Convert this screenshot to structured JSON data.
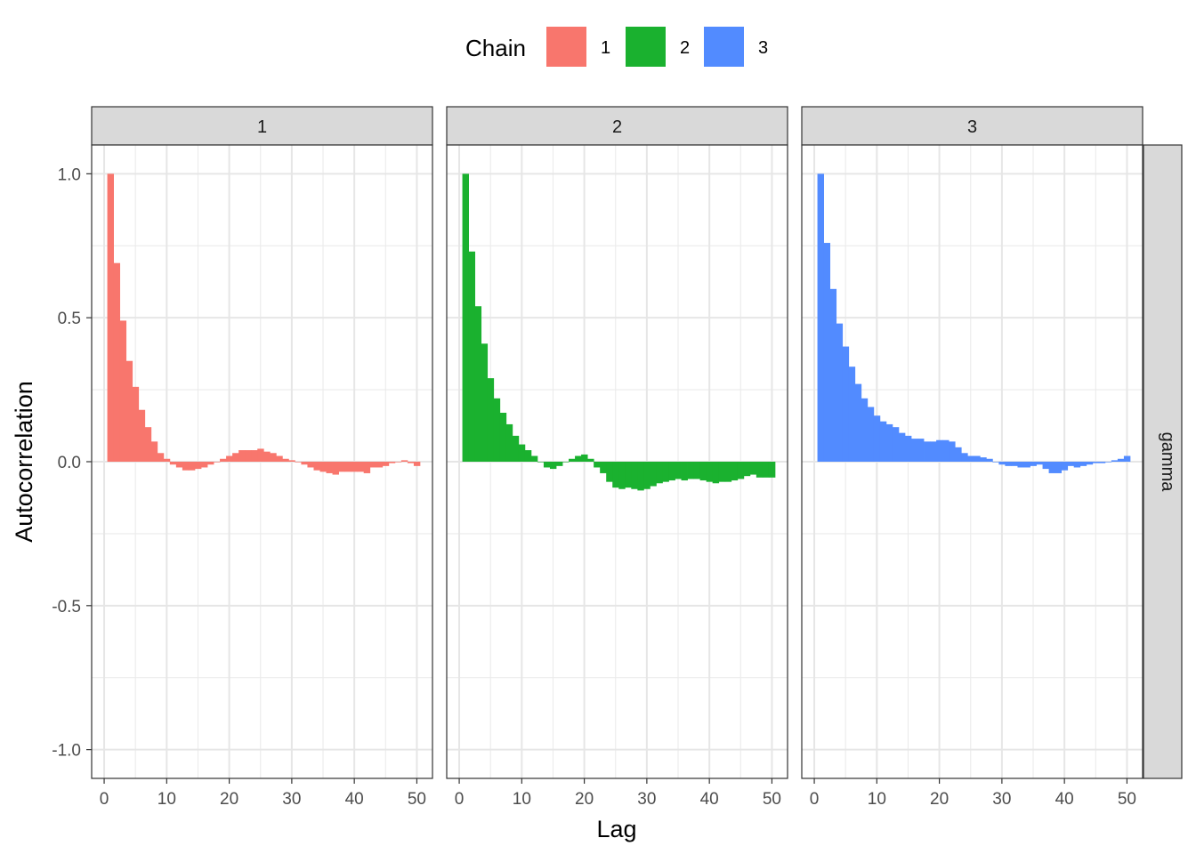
{
  "chart_data": {
    "type": "bar",
    "legend": {
      "title": "Chain",
      "position": "top",
      "entries": [
        {
          "label": "1",
          "color": "#F8766D"
        },
        {
          "label": "2",
          "color": "#1AB12F"
        },
        {
          "label": "3",
          "color": "#528BFF"
        }
      ]
    },
    "row_strip": "gamma",
    "xlabel": "Lag",
    "ylabel": "Autocorrelation",
    "xlim": [
      -2,
      52.5
    ],
    "ylim": [
      -1.1,
      1.1
    ],
    "xticks": [
      0,
      10,
      20,
      30,
      40,
      50
    ],
    "yticks": [
      -1.0,
      -0.5,
      0.0,
      0.5,
      1.0
    ],
    "ytick_labels": [
      "-1.0",
      "-0.5",
      "0.0",
      "0.5",
      "1.0"
    ],
    "grid": true,
    "lags": [
      1,
      2,
      3,
      4,
      5,
      6,
      7,
      8,
      9,
      10,
      11,
      12,
      13,
      14,
      15,
      16,
      17,
      18,
      19,
      20,
      21,
      22,
      23,
      24,
      25,
      26,
      27,
      28,
      29,
      30,
      31,
      32,
      33,
      34,
      35,
      36,
      37,
      38,
      39,
      40,
      41,
      42,
      43,
      44,
      45,
      46,
      47,
      48,
      49,
      50
    ],
    "series": [
      {
        "name": "1",
        "color": "#F8766D",
        "values": [
          1.0,
          0.69,
          0.49,
          0.35,
          0.26,
          0.18,
          0.12,
          0.07,
          0.03,
          0.01,
          -0.01,
          -0.02,
          -0.03,
          -0.03,
          -0.025,
          -0.02,
          -0.01,
          0.0,
          0.01,
          0.02,
          0.03,
          0.04,
          0.04,
          0.04,
          0.045,
          0.035,
          0.03,
          0.02,
          0.01,
          0.005,
          0.0,
          -0.01,
          -0.02,
          -0.03,
          -0.035,
          -0.04,
          -0.045,
          -0.035,
          -0.035,
          -0.035,
          -0.035,
          -0.04,
          -0.02,
          -0.02,
          -0.015,
          -0.005,
          0.0,
          0.005,
          -0.005,
          -0.015
        ]
      },
      {
        "name": "2",
        "color": "#1AB12F",
        "values": [
          1.0,
          0.73,
          0.54,
          0.41,
          0.29,
          0.22,
          0.17,
          0.13,
          0.09,
          0.06,
          0.04,
          0.02,
          0.0,
          -0.02,
          -0.025,
          -0.015,
          0.0,
          0.01,
          0.02,
          0.025,
          0.01,
          -0.02,
          -0.04,
          -0.07,
          -0.09,
          -0.095,
          -0.09,
          -0.095,
          -0.1,
          -0.095,
          -0.085,
          -0.075,
          -0.07,
          -0.065,
          -0.06,
          -0.065,
          -0.06,
          -0.06,
          -0.065,
          -0.07,
          -0.075,
          -0.07,
          -0.07,
          -0.065,
          -0.06,
          -0.05,
          -0.045,
          -0.055,
          -0.055,
          -0.055
        ]
      },
      {
        "name": "3",
        "color": "#528BFF",
        "values": [
          1.0,
          0.76,
          0.6,
          0.48,
          0.4,
          0.33,
          0.27,
          0.22,
          0.19,
          0.16,
          0.14,
          0.13,
          0.12,
          0.1,
          0.09,
          0.08,
          0.08,
          0.07,
          0.07,
          0.075,
          0.075,
          0.07,
          0.05,
          0.03,
          0.02,
          0.02,
          0.015,
          0.01,
          0.0,
          -0.01,
          -0.015,
          -0.015,
          -0.02,
          -0.02,
          -0.015,
          -0.01,
          -0.025,
          -0.04,
          -0.04,
          -0.03,
          -0.015,
          -0.02,
          -0.015,
          -0.01,
          -0.005,
          -0.005,
          0.0,
          0.005,
          0.01,
          0.02
        ]
      }
    ],
    "panels": [
      {
        "strip": "1",
        "series": 0
      },
      {
        "strip": "2",
        "series": 1
      },
      {
        "strip": "3",
        "series": 2
      }
    ]
  }
}
